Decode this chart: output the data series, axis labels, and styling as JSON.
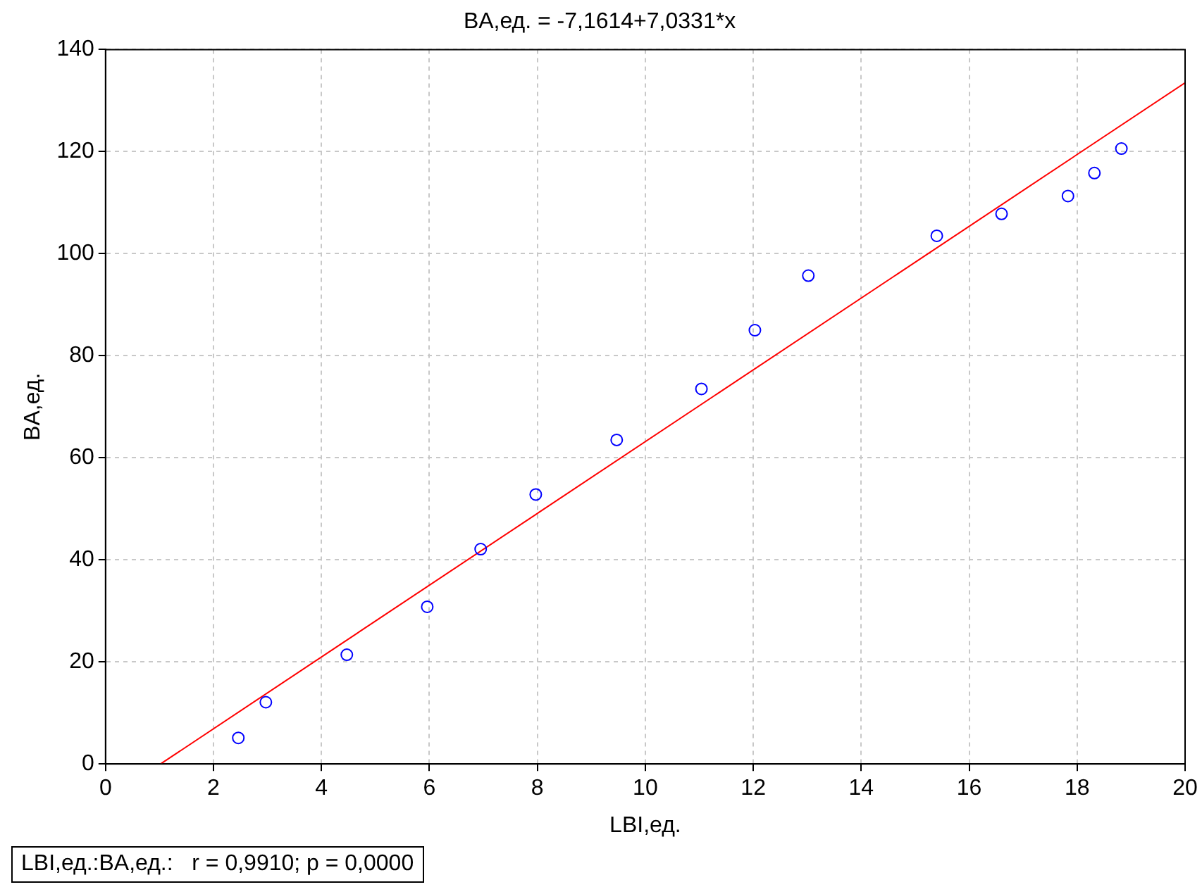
{
  "chart_data": {
    "type": "scatter",
    "title": "BA,ед. = -7,1614+7,0331*x",
    "xlabel": "LBI,ед.",
    "ylabel": "BA,ед.",
    "xlim": [
      0,
      20
    ],
    "xticks": [
      0,
      2,
      4,
      6,
      8,
      10,
      12,
      14,
      16,
      18,
      20
    ],
    "ylim": [
      0,
      140
    ],
    "yticks": [
      0,
      20,
      40,
      60,
      80,
      100,
      120,
      140
    ],
    "grid": true,
    "legend": false,
    "marker": "circle",
    "series": [
      {
        "type": "scatter",
        "color": "#0000ff",
        "x": [
          2.46,
          2.97,
          4.47,
          5.96,
          6.95,
          7.97,
          9.47,
          11.04,
          12.03,
          13.02,
          15.4,
          16.6,
          17.83,
          18.32,
          18.82
        ],
        "values": [
          5.1,
          12.1,
          21.4,
          30.8,
          42.1,
          52.8,
          63.5,
          73.5,
          85.0,
          95.7,
          103.5,
          107.8,
          111.3,
          115.8,
          120.6
        ]
      },
      {
        "type": "line",
        "color": "#ff0000",
        "marker": "none",
        "line_style": "solid",
        "x": [
          1.02,
          20
        ],
        "values": [
          0,
          133.5
        ]
      }
    ],
    "annotations": [
      "LBI,ед.:BA,ед.:   r = 0,9910; p = 0,0000"
    ]
  }
}
